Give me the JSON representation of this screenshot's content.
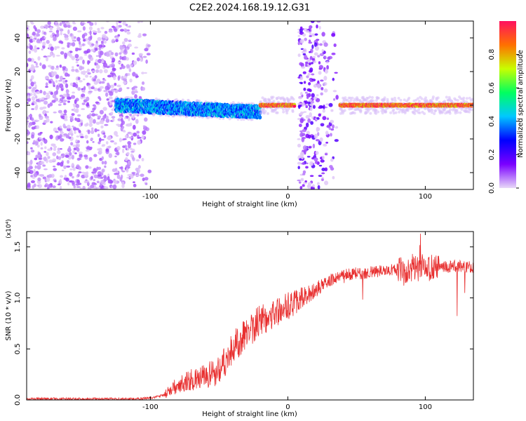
{
  "title": "C2E2.2024.168.19.12.G31",
  "chart_data": [
    {
      "type": "heatmap",
      "xlabel": "Height of straight line (km)",
      "ylabel": "Frequency (Hz)",
      "xlim": [
        -190,
        135
      ],
      "ylim": [
        -50,
        50
      ],
      "xticks": [
        -100,
        0,
        100
      ],
      "yticks": [
        -40,
        -20,
        0,
        20,
        40
      ],
      "colorbar": {
        "label": "Normalized spectral amplitude",
        "range": [
          0.0,
          1.0
        ],
        "ticks": [
          "0.0",
          "0.2",
          "0.4",
          "0.6",
          "0.8"
        ],
        "colormap": [
          "#e8d8f8",
          "#7a00ff",
          "#0000ff",
          "#00c8ff",
          "#00ff60",
          "#c8ff00",
          "#ff7000",
          "#ff1060"
        ]
      },
      "features": [
        {
          "name": "noise region (low height)",
          "x_range": [
            -190,
            -100
          ],
          "freq_range": [
            -50,
            50
          ],
          "amplitude": 0.05
        },
        {
          "name": "tracking band",
          "x_range": [
            -125,
            -20
          ],
          "freq_center": [
            0,
            -4
          ],
          "amplitude": 0.4
        },
        {
          "name": "strong carrier",
          "x_range": [
            -20,
            5
          ],
          "freq_center": 0,
          "amplitude": 0.95
        },
        {
          "name": "transition noise band",
          "x_range": [
            8,
            36
          ],
          "freq_range": [
            -50,
            50
          ],
          "amplitude": 0.1
        },
        {
          "name": "strong carrier (high height)",
          "x_range": [
            38,
            135
          ],
          "freq_center": 0,
          "amplitude": 0.95
        }
      ]
    },
    {
      "type": "line",
      "xlabel": "Height of straight line (km)",
      "ylabel": "SNR (10 * v/v)",
      "yscale_label": "(x10⁴)",
      "xlim": [
        -190,
        135
      ],
      "ylim": [
        0,
        1.65
      ],
      "xticks": [
        -100,
        0,
        100
      ],
      "yticks": [
        "0.0",
        "0.5",
        "1.0",
        "1.5"
      ],
      "color": "#e83030",
      "series": [
        {
          "x": [
            -190,
            -170,
            -150,
            -130,
            -110,
            -100,
            -95,
            -90,
            -85,
            -80,
            -75,
            -70,
            -65,
            -60,
            -55,
            -50,
            -45,
            -40,
            -35,
            -30,
            -25,
            -20,
            -15,
            -10,
            -5,
            0,
            5,
            10,
            15,
            20,
            25,
            30,
            35,
            40,
            50,
            60,
            70,
            80,
            90,
            100,
            110,
            120,
            135
          ],
          "y": [
            0.01,
            0.01,
            0.01,
            0.01,
            0.01,
            0.02,
            0.03,
            0.05,
            0.1,
            0.15,
            0.18,
            0.2,
            0.2,
            0.22,
            0.25,
            0.3,
            0.4,
            0.5,
            0.58,
            0.65,
            0.72,
            0.78,
            0.82,
            0.85,
            0.88,
            0.92,
            0.95,
            1.0,
            1.03,
            1.08,
            1.12,
            1.17,
            1.2,
            1.22,
            1.24,
            1.25,
            1.27,
            1.28,
            1.29,
            1.3,
            1.3,
            1.31,
            1.3
          ]
        }
      ]
    }
  ]
}
